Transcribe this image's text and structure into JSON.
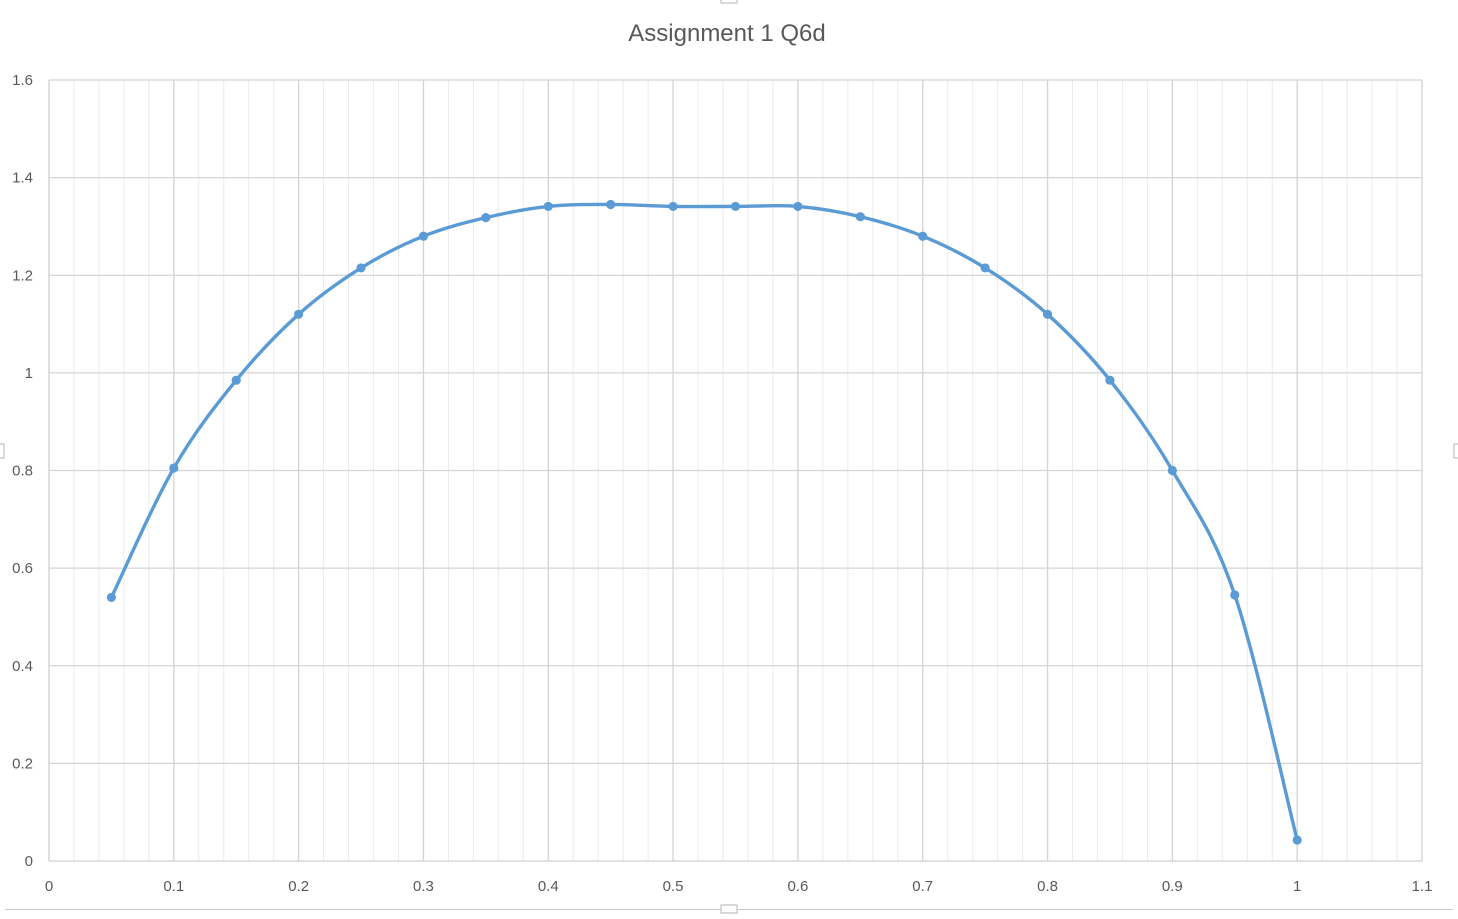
{
  "chart_data": {
    "type": "scatter",
    "title": "Assignment 1 Q6d",
    "xlabel": "",
    "ylabel": "",
    "xlim": [
      0,
      1.1
    ],
    "ylim": [
      0,
      1.6
    ],
    "x_ticks": [
      "0",
      "0.1",
      "0.2",
      "0.3",
      "0.4",
      "0.5",
      "0.6",
      "0.7",
      "0.8",
      "0.9",
      "1",
      "1.1"
    ],
    "y_ticks": [
      "0",
      "0.2",
      "0.4",
      "0.6",
      "0.8",
      "1",
      "1.2",
      "1.4",
      "1.6"
    ],
    "x_major_step": 0.1,
    "x_minor_step": 0.02,
    "y_major_step": 0.2,
    "grid": true,
    "smooth_line": true,
    "markers": true,
    "legend": "none",
    "color": "#5b9bd5",
    "series": [
      {
        "x": [
          0.05,
          0.1,
          0.15,
          0.2,
          0.25,
          0.3,
          0.35,
          0.4,
          0.45,
          0.5,
          0.55,
          0.6,
          0.65,
          0.7,
          0.75,
          0.8,
          0.85,
          0.9,
          0.95,
          1.0
        ],
        "y": [
          0.54,
          0.805,
          0.985,
          1.12,
          1.215,
          1.28,
          1.318,
          1.341,
          1.345,
          1.341,
          1.341,
          1.341,
          1.32,
          1.28,
          1.215,
          1.12,
          0.985,
          0.8,
          0.545,
          0.043
        ]
      }
    ]
  }
}
